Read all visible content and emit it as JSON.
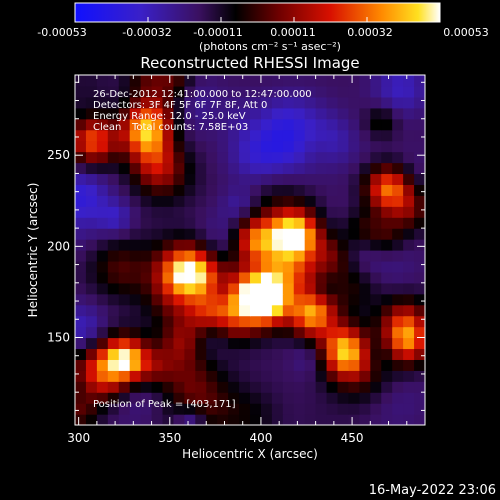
{
  "chart_data": {
    "type": "heatmap",
    "title": "Reconstructed RHESSI Image",
    "xlabel": "Heliocentric X (arcsec)",
    "ylabel": "Heliocentric Y (arcsec)",
    "xlim": [
      298,
      490
    ],
    "ylim": [
      102,
      294
    ],
    "x_ticks": [
      300,
      350,
      400,
      450
    ],
    "y_ticks": [
      150,
      200,
      250
    ],
    "colorbar": {
      "colormap": "RHESSI red-temperature (blue-black-purple-red-orange-yellow-white)",
      "min": -0.00053,
      "max": 0.00053,
      "tick_labels": [
        "-0.00053",
        "-0.00032",
        "-0.00011",
        "0.00011",
        "0.00032",
        "0.00053"
      ],
      "unit_label": "(photons cm⁻² s⁻¹ asec⁻²)"
    },
    "annotations": {
      "time_range": "26-Dec-2012 12:41:00.000 to 12:47:00.000",
      "detectors": "Detectors: 3F 4F 5F 6F 7F 8F, Att 0",
      "energy": "Energy Range: 12.0 - 25.0 keV",
      "method": "Clean",
      "counts": "Total counts: 7.58E+03",
      "peak": "Position of Peak = [403,171]"
    },
    "bright_sources": [
      {
        "x": 403,
        "y": 171,
        "level": 1.0
      },
      {
        "x": 428,
        "y": 164,
        "level": 0.95
      },
      {
        "x": 418,
        "y": 207,
        "level": 0.9
      },
      {
        "x": 323,
        "y": 138,
        "level": 0.85
      },
      {
        "x": 396,
        "y": 204,
        "level": 0.8
      },
      {
        "x": 470,
        "y": 232,
        "level": 0.8
      },
      {
        "x": 336,
        "y": 263,
        "level": 0.75
      },
      {
        "x": 362,
        "y": 185,
        "level": 0.75
      },
      {
        "x": 480,
        "y": 148,
        "level": 0.7
      },
      {
        "x": 446,
        "y": 141,
        "level": 0.7
      },
      {
        "x": 308,
        "y": 258,
        "level": 0.7
      }
    ]
  },
  "footer": {
    "timestamp": "16-May-2022 23:06"
  }
}
